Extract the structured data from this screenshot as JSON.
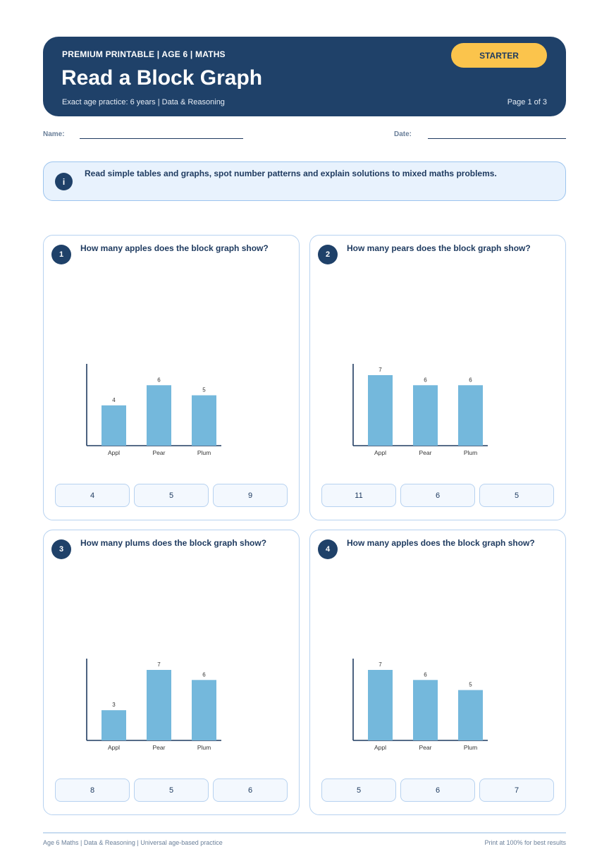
{
  "header": {
    "kicker": "PREMIUM PRINTABLE | AGE 6 | MATHS",
    "title": "Read a Block Graph",
    "subtitle": "Exact age practice: 6 years | Data & Reasoning",
    "page": "Page 1 of 3",
    "badge": "STARTER"
  },
  "fields": {
    "name_label": "Name:",
    "date_label": "Date:"
  },
  "info": {
    "icon": "i",
    "text": "Read simple tables and graphs, spot number patterns and explain solutions to mixed maths problems."
  },
  "colors": {
    "bar": "#74b8dc",
    "axis": "#1f3b60",
    "header_bg": "#1f4169",
    "badge": "#fbc44c"
  },
  "questions": [
    {
      "number": "1",
      "text": "How many apples does the block graph show?",
      "options": [
        "4",
        "5",
        "9"
      ]
    },
    {
      "number": "2",
      "text": "How many pears does the block graph show?",
      "options": [
        "11",
        "6",
        "5"
      ]
    },
    {
      "number": "3",
      "text": "How many plums does the block graph show?",
      "options": [
        "8",
        "5",
        "6"
      ]
    },
    {
      "number": "4",
      "text": "How many apples does the block graph show?",
      "options": [
        "5",
        "6",
        "7"
      ]
    }
  ],
  "chart_data": [
    {
      "type": "bar",
      "categories": [
        "Appl",
        "Pear",
        "Plum"
      ],
      "values": [
        4,
        6,
        5
      ],
      "ylim": [
        0,
        7
      ]
    },
    {
      "type": "bar",
      "categories": [
        "Appl",
        "Pear",
        "Plum"
      ],
      "values": [
        7,
        6,
        6
      ],
      "ylim": [
        0,
        7
      ]
    },
    {
      "type": "bar",
      "categories": [
        "Appl",
        "Pear",
        "Plum"
      ],
      "values": [
        3,
        7,
        6
      ],
      "ylim": [
        0,
        7
      ]
    },
    {
      "type": "bar",
      "categories": [
        "Appl",
        "Pear",
        "Plum"
      ],
      "values": [
        7,
        6,
        5
      ],
      "ylim": [
        0,
        7
      ]
    }
  ],
  "footer": {
    "left": "Age 6 Maths | Data & Reasoning | Universal age-based practice",
    "right": "Print at 100% for best results"
  }
}
